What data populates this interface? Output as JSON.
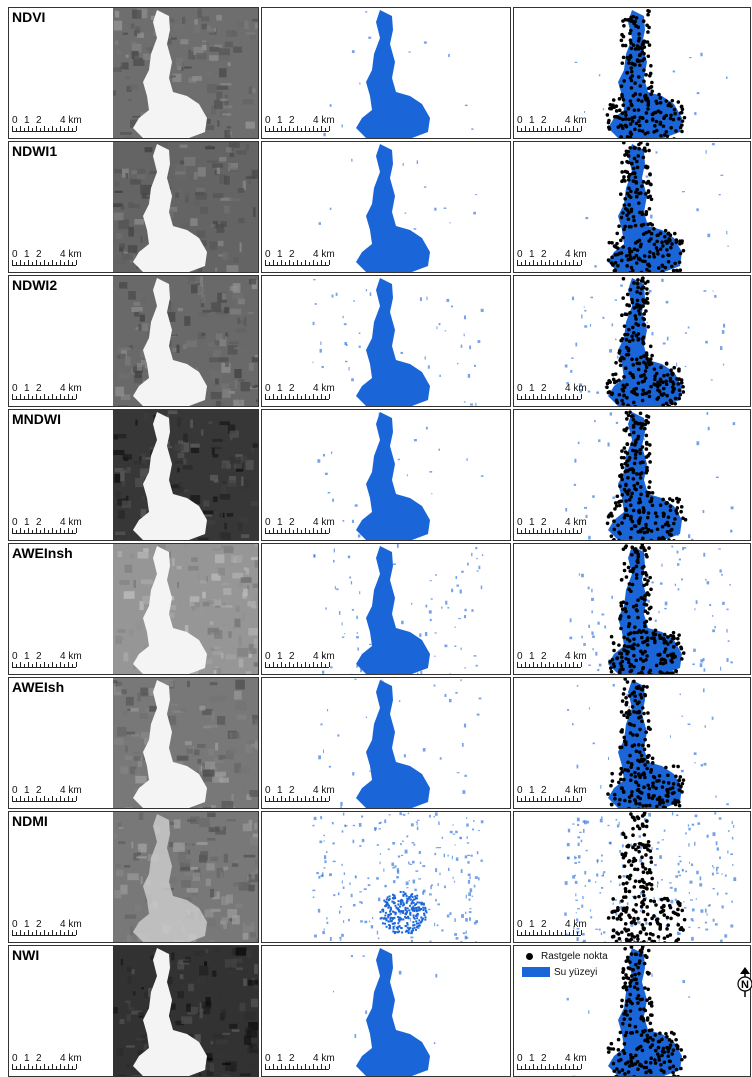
{
  "figure": {
    "rows": [
      {
        "index": "NDVI"
      },
      {
        "index": "NDWI1"
      },
      {
        "index": "NDWI2"
      },
      {
        "index": "MNDWI"
      },
      {
        "index": "AWEInsh"
      },
      {
        "index": "AWEIsh"
      },
      {
        "index": "NDMI"
      },
      {
        "index": "NWI"
      }
    ],
    "scalebar": {
      "ticks": [
        "0",
        "1",
        "2",
        "4 km"
      ]
    },
    "legend": {
      "random_point_label": "Rastgele nokta",
      "water_surface_label": "Su yüzeyi"
    },
    "north_arrow": {
      "letter": "N"
    },
    "colors": {
      "water": "#1a66d9",
      "point": "#000000",
      "frame": "#333333"
    }
  }
}
